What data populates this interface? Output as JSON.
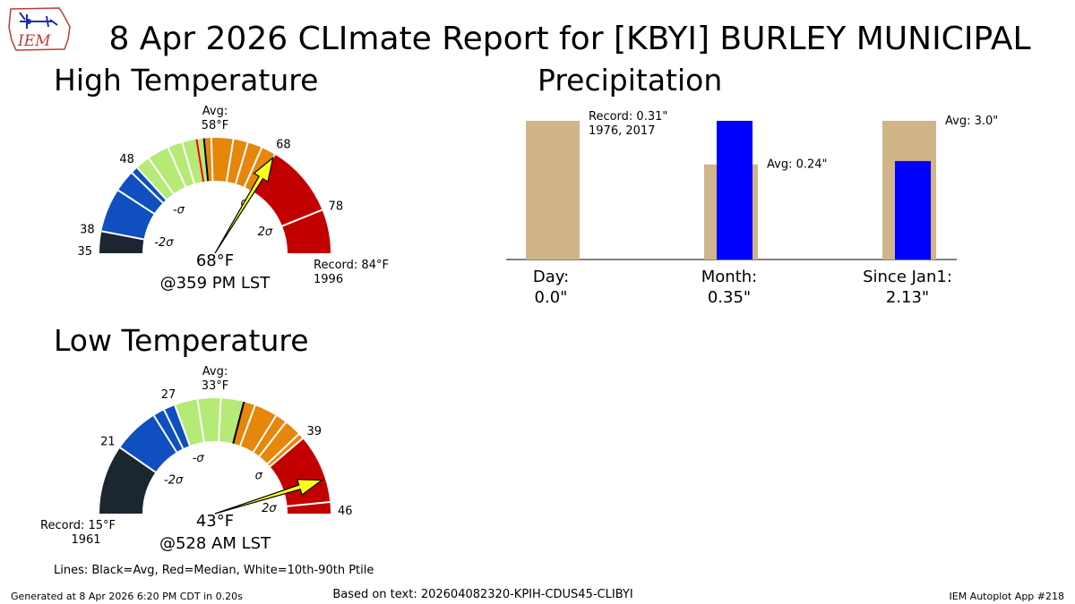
{
  "title": "8 Apr 2026 CLImate Report for [KBYI] BURLEY MUNICIPAL",
  "logo_text": "IEM",
  "legend_note": "Lines: Black=Avg, Red=Median, White=10th-90th Ptile",
  "footer": {
    "generated": "Generated at 8 Apr 2026 6:20 PM CDT in 0.20s",
    "based_on": "Based on text: 202604082320-KPIH-CDUS45-CLIBYI",
    "app": "IEM Autoplot App #218"
  },
  "colors": {
    "gauge_bands": [
      "#1c2630",
      "#0f4fbf",
      "#b5ea76",
      "#e6860a",
      "#c20000"
    ],
    "needle": "#ffff1a",
    "precip_avg_bar": "#d0b48a",
    "precip_obs_bar": "#0000ff"
  },
  "chart_data": [
    {
      "type": "gauge",
      "panel_title": "High Temperature",
      "value_text": "68°F",
      "time_text": "@359 PM LST",
      "observed": 68,
      "range": [
        35,
        84
      ],
      "thresholds": [
        35,
        38,
        48,
        58,
        68,
        78,
        84
      ],
      "threshold_labels": [
        "35",
        "38",
        "48",
        "68",
        "78"
      ],
      "sigma_labels": [
        "-2σ",
        "-σ",
        "σ",
        "2σ"
      ],
      "avg": 58,
      "avg_label": "Avg:",
      "avg_value_text": "58°F",
      "median": 57,
      "percentile_lines": [
        44,
        47,
        50,
        53,
        55,
        57,
        59,
        62,
        64,
        66
      ],
      "record_text": "Record: 84°F",
      "record_year": "1996",
      "record_side": "right"
    },
    {
      "type": "gauge",
      "panel_title": "Low Temperature",
      "value_text": "43°F",
      "time_text": "@528 AM LST",
      "observed": 43,
      "range": [
        15,
        46
      ],
      "thresholds": [
        15,
        21,
        27,
        33,
        39,
        45,
        46
      ],
      "threshold_labels": [
        "21",
        "27",
        "39",
        "46"
      ],
      "sigma_labels": [
        "-2σ",
        "-σ",
        "σ",
        "2σ"
      ],
      "avg": 33,
      "avg_label": "Avg:",
      "avg_value_text": "33°F",
      "median": 33,
      "percentile_lines": [
        25,
        26,
        29,
        31,
        34,
        36,
        37,
        38.5
      ],
      "record_text": "Record: 15°F",
      "record_year": "1961",
      "record_side": "left"
    },
    {
      "type": "bar",
      "panel_title": "Precipitation",
      "categories": [
        "Day:",
        "Month:",
        "Since Jan1:"
      ],
      "observed_text": [
        "0.0\"",
        "0.35\"",
        "2.13\""
      ],
      "observed": [
        0.0,
        0.35,
        2.13
      ],
      "reference": [
        0.31,
        0.24,
        3.0
      ],
      "reference_labels": [
        "Record: 0.31\"",
        "Avg: 0.24\"",
        "Avg: 3.0\""
      ],
      "reference_sublabels": [
        "1976, 2017",
        "",
        ""
      ]
    }
  ]
}
